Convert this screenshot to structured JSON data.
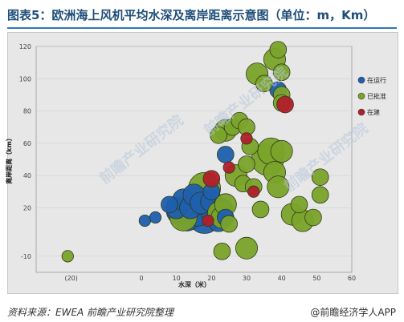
{
  "header": {
    "title": "图表5：欧洲海上风机平均水深及离岸距离示意图（单位：m，Km）"
  },
  "footer": {
    "source": "资料来源：EWEA  前瞻产业研究院整理",
    "brand": "@前瞻经济学人APP"
  },
  "watermark": {
    "text": "前瞻产业研究院"
  },
  "colors": {
    "operating": "#1f5fae",
    "approved": "#7aa32a",
    "construction": "#b01f2a",
    "plot_bg": "#e7e7e7",
    "title": "#1f4e79"
  },
  "chart_data": {
    "type": "scatter",
    "title": "",
    "xlabel": "水深（米）",
    "ylabel": "离岸距离（km）",
    "xlim": [
      -30,
      60
    ],
    "ylim": [
      -20,
      120
    ],
    "x_ticks": [
      "(20)",
      "0",
      "10",
      "20",
      "30",
      "40",
      "50",
      "60"
    ],
    "x_tick_values": [
      -20,
      0,
      10,
      20,
      30,
      40,
      50,
      60
    ],
    "y_ticks": [
      "-10",
      "20",
      "40",
      "60",
      "80",
      "100",
      "120"
    ],
    "y_tick_values": [
      -10,
      20,
      40,
      60,
      80,
      100,
      120
    ],
    "legend_position": "right",
    "series": [
      {
        "name": "在运行",
        "color": "#1f5fae",
        "points": [
          {
            "x": 8,
            "y": 22,
            "s": 2
          },
          {
            "x": 10,
            "y": 20,
            "s": 3
          },
          {
            "x": 11,
            "y": 18,
            "s": 4
          },
          {
            "x": 12,
            "y": 25,
            "s": 3
          },
          {
            "x": 13,
            "y": 14,
            "s": 4
          },
          {
            "x": 14,
            "y": 20,
            "s": 3
          },
          {
            "x": 15,
            "y": 28,
            "s": 3
          },
          {
            "x": 16,
            "y": 17,
            "s": 4
          },
          {
            "x": 17,
            "y": 23,
            "s": 3
          },
          {
            "x": 18,
            "y": 14,
            "s": 5
          },
          {
            "x": 19,
            "y": 19,
            "s": 5
          },
          {
            "x": 20,
            "y": 24,
            "s": 3
          },
          {
            "x": 21,
            "y": 16,
            "s": 4
          },
          {
            "x": 22,
            "y": 12,
            "s": 3
          },
          {
            "x": 23,
            "y": 19,
            "s": 3
          },
          {
            "x": 24,
            "y": 14,
            "s": 2
          },
          {
            "x": 20,
            "y": 30,
            "s": 2
          },
          {
            "x": 24,
            "y": 53,
            "s": 2
          },
          {
            "x": 1,
            "y": 12,
            "s": 1
          },
          {
            "x": 4,
            "y": 14,
            "s": 1
          },
          {
            "x": 39,
            "y": 93,
            "s": 2
          }
        ]
      },
      {
        "name": "已批准",
        "color": "#7aa32a",
        "points": [
          {
            "x": -21,
            "y": -10,
            "s": 1
          },
          {
            "x": 12,
            "y": 14,
            "s": 4
          },
          {
            "x": 16,
            "y": 24,
            "s": 4
          },
          {
            "x": 18,
            "y": 32,
            "s": 5
          },
          {
            "x": 22,
            "y": 17,
            "s": 3
          },
          {
            "x": 23,
            "y": 14,
            "s": 3
          },
          {
            "x": 24,
            "y": 22,
            "s": 3
          },
          {
            "x": 25,
            "y": 10,
            "s": 2
          },
          {
            "x": 23,
            "y": -7,
            "s": 2
          },
          {
            "x": 22,
            "y": 65,
            "s": 2
          },
          {
            "x": 24,
            "y": 68,
            "s": 3
          },
          {
            "x": 26,
            "y": 70,
            "s": 2
          },
          {
            "x": 28,
            "y": 74,
            "s": 2
          },
          {
            "x": 30,
            "y": 70,
            "s": 2
          },
          {
            "x": 27,
            "y": 40,
            "s": 3
          },
          {
            "x": 29,
            "y": 35,
            "s": 2
          },
          {
            "x": 30,
            "y": 47,
            "s": 2
          },
          {
            "x": 30,
            "y": -5,
            "s": 3
          },
          {
            "x": 31,
            "y": 58,
            "s": 2
          },
          {
            "x": 32,
            "y": 33,
            "s": 2
          },
          {
            "x": 33,
            "y": 103,
            "s": 3
          },
          {
            "x": 35,
            "y": 97,
            "s": 2
          },
          {
            "x": 34,
            "y": 19,
            "s": 2
          },
          {
            "x": 36,
            "y": 50,
            "s": 5
          },
          {
            "x": 37,
            "y": 55,
            "s": 4
          },
          {
            "x": 38,
            "y": 42,
            "s": 3
          },
          {
            "x": 38,
            "y": 112,
            "s": 3
          },
          {
            "x": 39,
            "y": 33,
            "s": 3
          },
          {
            "x": 40,
            "y": 55,
            "s": 3
          },
          {
            "x": 40,
            "y": 104,
            "s": 2
          },
          {
            "x": 40,
            "y": 90,
            "s": 2
          },
          {
            "x": 39,
            "y": 118,
            "s": 2
          },
          {
            "x": 40,
            "y": 85,
            "s": 2
          },
          {
            "x": 43,
            "y": 16,
            "s": 3
          },
          {
            "x": 45,
            "y": 22,
            "s": 2
          },
          {
            "x": 46,
            "y": 12,
            "s": 3
          },
          {
            "x": 49,
            "y": 14,
            "s": 2
          },
          {
            "x": 51,
            "y": 28,
            "s": 2
          },
          {
            "x": 51,
            "y": 39,
            "s": 2
          }
        ]
      },
      {
        "name": "在建",
        "color": "#b01f2a",
        "points": [
          {
            "x": 20,
            "y": 38,
            "s": 2
          },
          {
            "x": 25,
            "y": 45,
            "s": 1
          },
          {
            "x": 30,
            "y": 63,
            "s": 1
          },
          {
            "x": 32,
            "y": 30,
            "s": 1
          },
          {
            "x": 19,
            "y": 12,
            "s": 1
          },
          {
            "x": 41,
            "y": 84,
            "s": 2
          }
        ]
      }
    ]
  }
}
